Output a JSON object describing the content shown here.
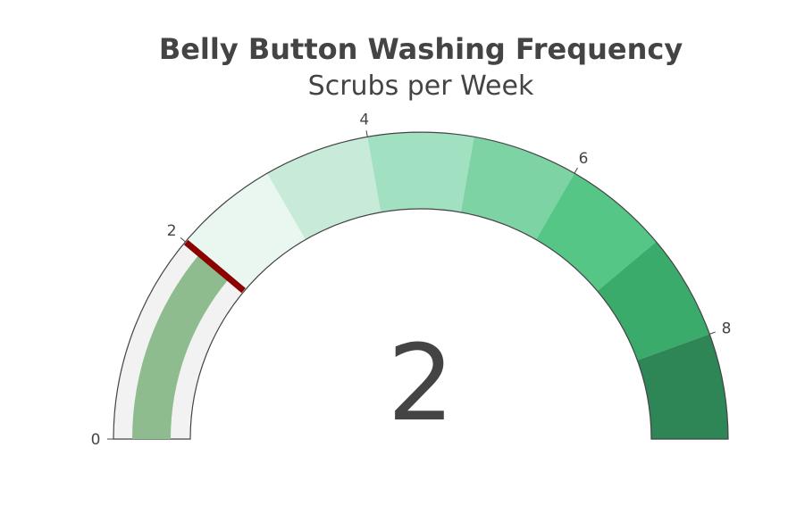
{
  "chart_data": {
    "type": "gauge",
    "title": "Belly Button Washing Frequency",
    "subtitle": "Scrubs per Week",
    "value": 2,
    "range": [
      0,
      9
    ],
    "tick_labels": [
      "0",
      "2",
      "4",
      "6",
      "8"
    ],
    "tick_values": [
      0,
      2,
      4,
      6,
      8
    ],
    "bar_color": "#8fbc8f",
    "threshold": {
      "value": 2,
      "color": "#8b0000"
    },
    "steps": [
      {
        "range": [
          0,
          1
        ],
        "color": "#f2f2f2"
      },
      {
        "range": [
          1,
          2
        ],
        "color": "#f2f2f2"
      },
      {
        "range": [
          2,
          3
        ],
        "color": "#eaf7f1"
      },
      {
        "range": [
          3,
          4
        ],
        "color": "#c7ebd8"
      },
      {
        "range": [
          4,
          5
        ],
        "color": "#a1e0c0"
      },
      {
        "range": [
          5,
          6
        ],
        "color": "#7dd3a3"
      },
      {
        "range": [
          6,
          7
        ],
        "color": "#55c686"
      },
      {
        "range": [
          7,
          8
        ],
        "color": "#3aab6b"
      },
      {
        "range": [
          8,
          9
        ],
        "color": "#2e8555"
      }
    ]
  }
}
